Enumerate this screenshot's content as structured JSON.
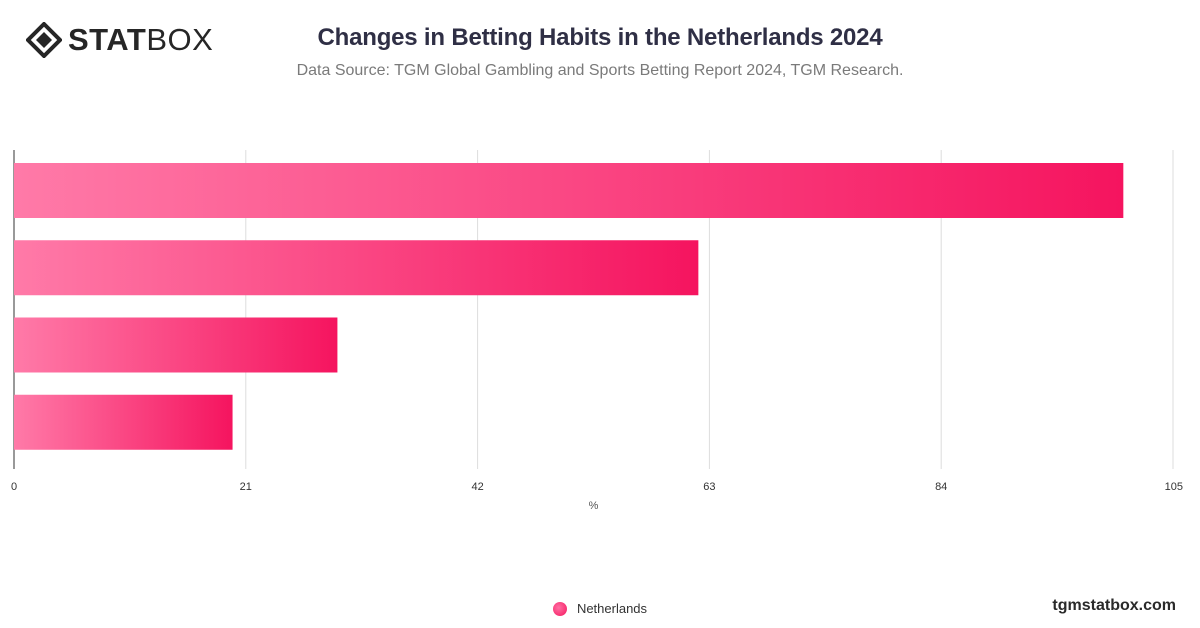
{
  "brand": {
    "logo_bold": "STAT",
    "logo_light": "BOX",
    "footer_url": "tgmstatbox.com"
  },
  "chart_data": {
    "type": "bar",
    "orientation": "horizontal",
    "title": "Changes in Betting Habits in the Netherlands 2024",
    "subtitle": "Data Source: TGM Global Gambling and Sports Betting Report 2024, TGM Research.",
    "xlabel": "%",
    "ylabel": "",
    "xlim": [
      0,
      105
    ],
    "xticks": [
      0,
      21,
      42,
      63,
      84,
      105
    ],
    "grid": true,
    "legend_position": "bottom-center",
    "categories": [
      "",
      "",
      "",
      ""
    ],
    "series": [
      {
        "name": "Netherlands",
        "values": [
          100.5,
          62,
          29.3,
          19.8
        ]
      }
    ],
    "colors": {
      "bar_start": "#ff7aa8",
      "bar_end": "#f5145f",
      "grid": "#dddddd",
      "axis": "#333333"
    }
  }
}
